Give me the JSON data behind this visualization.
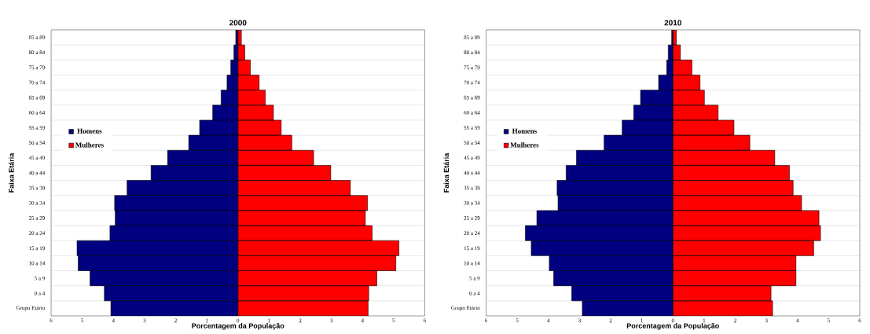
{
  "chart_data": [
    {
      "type": "bar",
      "orientation": "horizontal",
      "title": "2000",
      "xlabel": "Porcentagem da População",
      "ylabel": "Faixa Etária",
      "categories": [
        "85 a 89",
        "80 a 84",
        "75 a 79",
        "70 a 74",
        "65 a 69",
        "60 a 64",
        "55 a 59",
        "50 a 54",
        "45 a 49",
        "40 a 44",
        "35 a 39",
        "30 a 34",
        "25 a 29",
        "20 a 24",
        "15 a 19",
        "10 a 14",
        "5 a 9",
        "0 a 4",
        "Grupo Etário"
      ],
      "series": [
        {
          "name": "Homens",
          "color": "#000080",
          "values": [
            -0.07,
            -0.13,
            -0.23,
            -0.35,
            -0.54,
            -0.81,
            -1.23,
            -1.58,
            -2.26,
            -2.79,
            -3.56,
            -3.96,
            -3.94,
            -4.11,
            -5.17,
            -5.13,
            -4.75,
            -4.29,
            -4.08
          ]
        },
        {
          "name": "Mulheres",
          "color": "#ff0000",
          "values": [
            0.11,
            0.22,
            0.4,
            0.68,
            0.88,
            1.14,
            1.39,
            1.73,
            2.43,
            2.98,
            3.61,
            4.16,
            4.09,
            4.31,
            5.17,
            5.07,
            4.46,
            4.2,
            4.18
          ]
        }
      ],
      "xlim": [
        -6,
        6
      ],
      "xticks": [
        {
          "value": -6,
          "label": "6"
        },
        {
          "value": -5,
          "label": "5"
        },
        {
          "value": -4,
          "label": "4"
        },
        {
          "value": -3,
          "label": "3"
        },
        {
          "value": -2,
          "label": "2"
        },
        {
          "value": -1,
          "label": "1"
        },
        0,
        1,
        2,
        3,
        4,
        5,
        6
      ],
      "grid": "y",
      "legend": "left",
      "stacked": true,
      "ref_lines": [
        {
          "axis": "x",
          "value": 0,
          "line_style": "dotted",
          "color": "#000000"
        }
      ]
    },
    {
      "type": "bar",
      "orientation": "horizontal",
      "title": "2010",
      "xlabel": "Porcentagem da População",
      "ylabel": "Faixa Etária",
      "categories": [
        "85 a 89",
        "80 a 84",
        "75 a 79",
        "70 a 74",
        "65 a 69",
        "60 a 64",
        "55 a 59",
        "50 a 54",
        "45 a 49",
        "40 a 44",
        "35 a 39",
        "30 a 34",
        "25 a 29",
        "20 a 24",
        "15 a 19",
        "10 a 14",
        "5 a 9",
        "0 a 4",
        "Grupo Etário"
      ],
      "series": [
        {
          "name": "Homens",
          "color": "#000080",
          "values": [
            -0.04,
            -0.15,
            -0.2,
            -0.46,
            -1.04,
            -1.26,
            -1.63,
            -2.21,
            -3.1,
            -3.43,
            -3.72,
            -3.69,
            -4.37,
            -4.74,
            -4.55,
            -3.97,
            -3.83,
            -3.25,
            -2.91
          ]
        },
        {
          "name": "Mulheres",
          "color": "#ff0000",
          "values": [
            0.11,
            0.24,
            0.61,
            0.87,
            1.01,
            1.45,
            1.96,
            2.47,
            3.27,
            3.74,
            3.86,
            4.13,
            4.69,
            4.74,
            4.52,
            3.95,
            3.95,
            3.15,
            3.2
          ]
        }
      ],
      "xlim": [
        -6,
        6
      ],
      "xticks": [
        {
          "value": -6,
          "label": "6"
        },
        {
          "value": -5,
          "label": "5"
        },
        {
          "value": -4,
          "label": "4"
        },
        {
          "value": -3,
          "label": "3"
        },
        {
          "value": -2,
          "label": "2"
        },
        {
          "value": -1,
          "label": "1"
        },
        0,
        1,
        2,
        3,
        4,
        5,
        6
      ],
      "grid": "y",
      "legend": "left",
      "stacked": true,
      "ref_lines": [
        {
          "axis": "x",
          "value": 0,
          "line_style": "dotted",
          "color": "#000000"
        }
      ]
    }
  ]
}
